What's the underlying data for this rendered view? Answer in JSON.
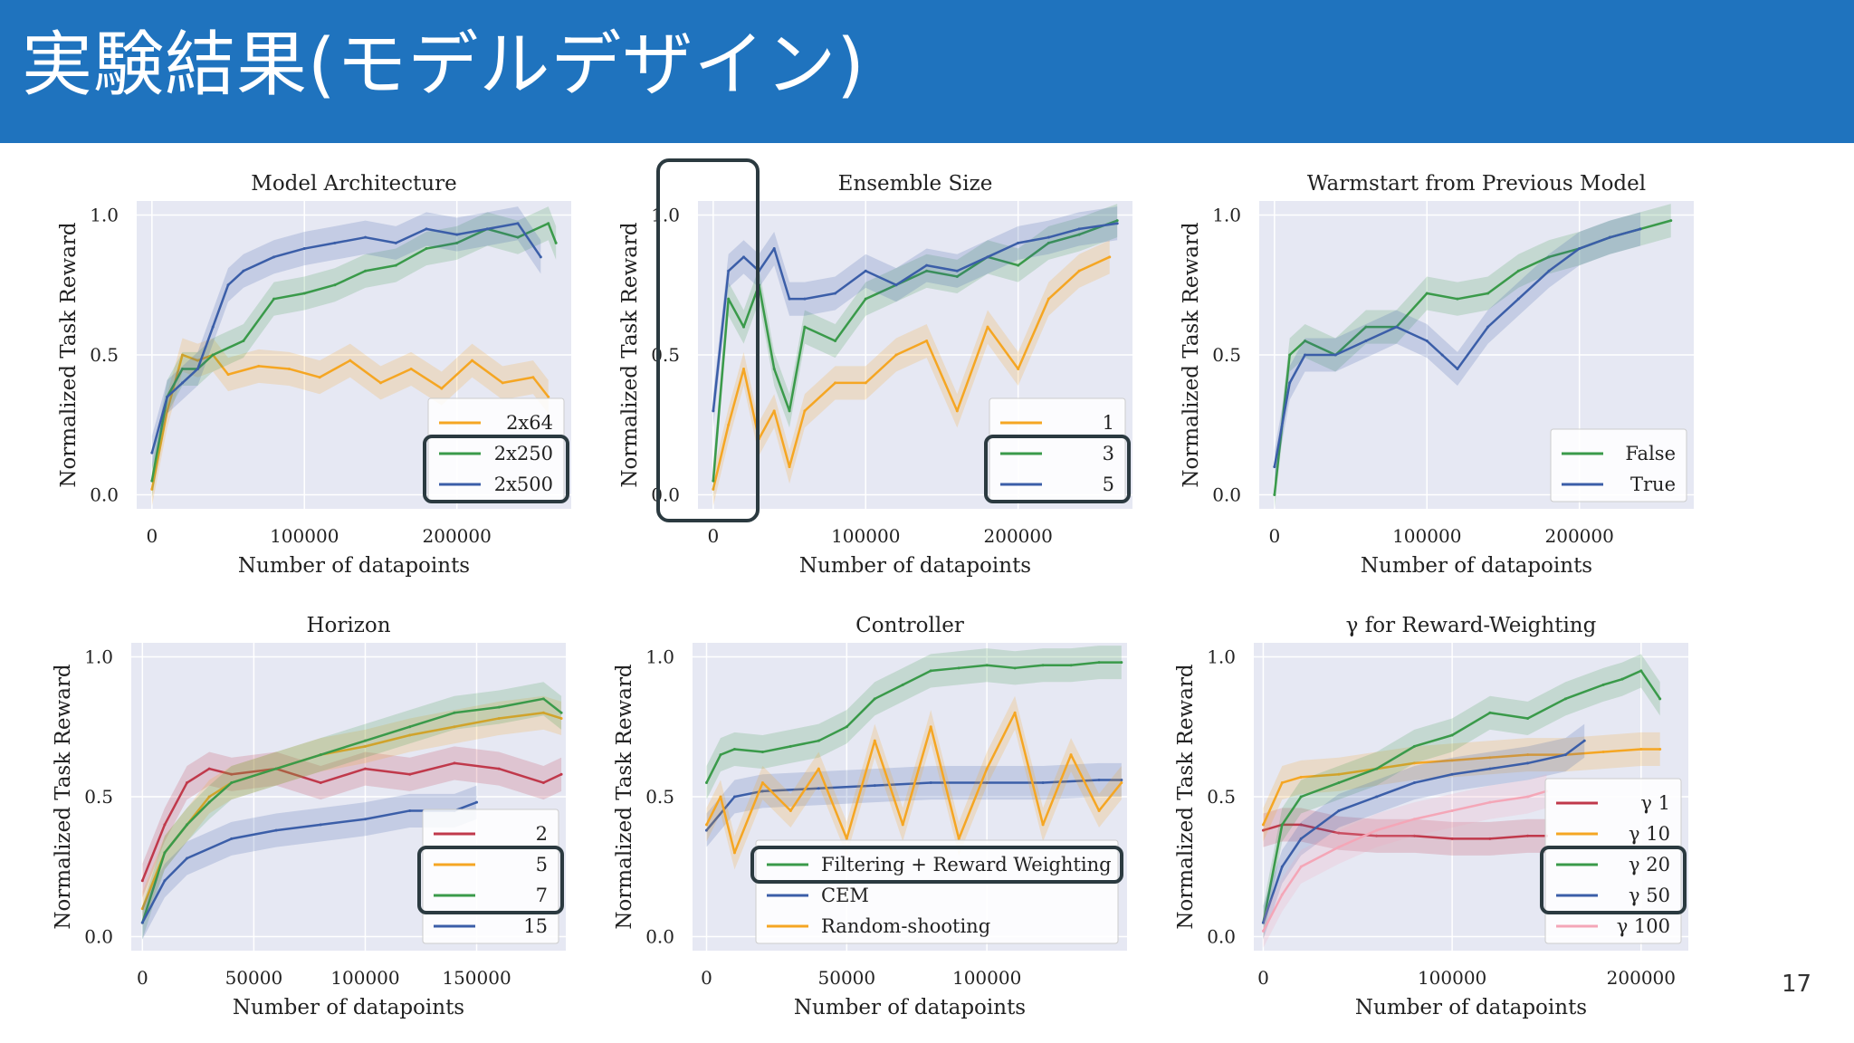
{
  "slide": {
    "title": "実験結果(モデルデザイン)",
    "page_number": "17"
  },
  "colors": {
    "banner": "#1f73be",
    "plot_bg": "#e6e8f3",
    "highlight_box": "#2b3a40"
  },
  "chart_data": [
    {
      "type": "line",
      "title": "Model Architecture",
      "xlabel": "Number of datapoints",
      "ylabel": "Normalized Task Reward",
      "xlim": [
        -10000,
        275000
      ],
      "ylim": [
        -0.05,
        1.05
      ],
      "xticks": [
        {
          "v": 0,
          "label": "0"
        },
        {
          "v": 100000,
          "label": "100000"
        },
        {
          "v": 200000,
          "label": "200000"
        }
      ],
      "yticks": [
        {
          "v": 0,
          "label": "0.0"
        },
        {
          "v": 0.5,
          "label": "0.5"
        },
        {
          "v": 1,
          "label": "1.0"
        }
      ],
      "legend": "lower-right",
      "grid": true,
      "highlight_legend_entries": [
        "2x250",
        "2x500"
      ],
      "series": [
        {
          "name": "2x64",
          "color": "#f5a623",
          "x": [
            0,
            10000,
            20000,
            30000,
            40000,
            50000,
            70000,
            90000,
            110000,
            130000,
            150000,
            170000,
            190000,
            210000,
            230000,
            250000,
            260000
          ],
          "y": [
            0.02,
            0.3,
            0.5,
            0.48,
            0.5,
            0.43,
            0.46,
            0.45,
            0.42,
            0.48,
            0.4,
            0.45,
            0.38,
            0.48,
            0.4,
            0.42,
            0.35
          ]
        },
        {
          "name": "2x250",
          "color": "#3a9a4a",
          "x": [
            0,
            10000,
            20000,
            30000,
            40000,
            60000,
            80000,
            100000,
            120000,
            140000,
            160000,
            180000,
            200000,
            220000,
            240000,
            260000,
            265000
          ],
          "y": [
            0.05,
            0.35,
            0.45,
            0.45,
            0.5,
            0.55,
            0.7,
            0.72,
            0.75,
            0.8,
            0.82,
            0.88,
            0.9,
            0.95,
            0.92,
            0.97,
            0.9
          ]
        },
        {
          "name": "2x500",
          "color": "#3b5ea8",
          "x": [
            0,
            10000,
            20000,
            30000,
            40000,
            50000,
            60000,
            80000,
            100000,
            120000,
            140000,
            160000,
            180000,
            200000,
            220000,
            240000,
            255000
          ],
          "y": [
            0.15,
            0.35,
            0.4,
            0.45,
            0.6,
            0.75,
            0.8,
            0.85,
            0.88,
            0.9,
            0.92,
            0.9,
            0.95,
            0.93,
            0.95,
            0.97,
            0.85
          ]
        }
      ]
    },
    {
      "type": "line",
      "title": "Ensemble Size",
      "xlabel": "Number of datapoints",
      "ylabel": "Normalized Task Reward",
      "xlim": [
        -10000,
        275000
      ],
      "ylim": [
        -0.05,
        1.05
      ],
      "xticks": [
        {
          "v": 0,
          "label": "0"
        },
        {
          "v": 100000,
          "label": "100000"
        },
        {
          "v": 200000,
          "label": "200000"
        }
      ],
      "yticks": [
        {
          "v": 0,
          "label": "0.0"
        },
        {
          "v": 0.5,
          "label": "0.5"
        },
        {
          "v": 1,
          "label": "1.0"
        }
      ],
      "legend": "lower-right",
      "grid": true,
      "highlight_legend_entries": [
        "3",
        "5"
      ],
      "series": [
        {
          "name": "1",
          "color": "#f5a623",
          "x": [
            0,
            10000,
            20000,
            30000,
            40000,
            50000,
            60000,
            80000,
            100000,
            120000,
            140000,
            160000,
            180000,
            200000,
            220000,
            240000,
            260000
          ],
          "y": [
            0.02,
            0.25,
            0.45,
            0.2,
            0.3,
            0.1,
            0.3,
            0.4,
            0.4,
            0.5,
            0.55,
            0.3,
            0.6,
            0.45,
            0.7,
            0.8,
            0.85
          ]
        },
        {
          "name": "3",
          "color": "#3a9a4a",
          "x": [
            0,
            10000,
            20000,
            30000,
            40000,
            50000,
            60000,
            80000,
            100000,
            120000,
            140000,
            160000,
            180000,
            200000,
            220000,
            240000,
            265000
          ],
          "y": [
            0.05,
            0.7,
            0.6,
            0.75,
            0.45,
            0.3,
            0.6,
            0.55,
            0.7,
            0.75,
            0.8,
            0.78,
            0.85,
            0.82,
            0.9,
            0.93,
            0.98
          ]
        },
        {
          "name": "5",
          "color": "#3b5ea8",
          "x": [
            0,
            10000,
            20000,
            30000,
            40000,
            50000,
            60000,
            80000,
            100000,
            120000,
            140000,
            160000,
            180000,
            200000,
            220000,
            240000,
            265000
          ],
          "y": [
            0.3,
            0.8,
            0.85,
            0.8,
            0.88,
            0.7,
            0.7,
            0.72,
            0.8,
            0.75,
            0.82,
            0.8,
            0.85,
            0.9,
            0.92,
            0.95,
            0.97
          ]
        }
      ]
    },
    {
      "type": "line",
      "title": "Warmstart from Previous Model",
      "xlabel": "Number of datapoints",
      "ylabel": "Normalized Task Reward",
      "xlim": [
        -10000,
        275000
      ],
      "ylim": [
        -0.05,
        1.05
      ],
      "xticks": [
        {
          "v": 0,
          "label": "0"
        },
        {
          "v": 100000,
          "label": "100000"
        },
        {
          "v": 200000,
          "label": "200000"
        }
      ],
      "yticks": [
        {
          "v": 0,
          "label": "0.0"
        },
        {
          "v": 0.5,
          "label": "0.5"
        },
        {
          "v": 1,
          "label": "1.0"
        }
      ],
      "legend": "lower-right",
      "grid": true,
      "highlight_legend_entries": [],
      "series": [
        {
          "name": "False",
          "color": "#3a9a4a",
          "x": [
            0,
            10000,
            20000,
            40000,
            60000,
            80000,
            100000,
            120000,
            140000,
            160000,
            180000,
            200000,
            220000,
            240000,
            260000
          ],
          "y": [
            0.0,
            0.5,
            0.55,
            0.5,
            0.6,
            0.6,
            0.72,
            0.7,
            0.72,
            0.8,
            0.85,
            0.88,
            0.92,
            0.95,
            0.98
          ]
        },
        {
          "name": "True",
          "color": "#3b5ea8",
          "x": [
            0,
            10000,
            20000,
            40000,
            60000,
            80000,
            100000,
            110000,
            120000,
            140000,
            160000,
            180000,
            200000,
            220000,
            240000
          ],
          "y": [
            0.1,
            0.4,
            0.5,
            0.5,
            0.55,
            0.6,
            0.55,
            0.5,
            0.45,
            0.6,
            0.7,
            0.8,
            0.88,
            0.92,
            0.95
          ]
        }
      ]
    },
    {
      "type": "line",
      "title": "Horizon",
      "xlabel": "Number of datapoints",
      "ylabel": "Normalized Task Reward",
      "xlim": [
        -5000,
        190000
      ],
      "ylim": [
        -0.05,
        1.05
      ],
      "xticks": [
        {
          "v": 0,
          "label": "0"
        },
        {
          "v": 50000,
          "label": "50000"
        },
        {
          "v": 100000,
          "label": "100000"
        },
        {
          "v": 150000,
          "label": "150000"
        }
      ],
      "yticks": [
        {
          "v": 0,
          "label": "0.0"
        },
        {
          "v": 0.5,
          "label": "0.5"
        },
        {
          "v": 1,
          "label": "1.0"
        }
      ],
      "legend": "lower-right",
      "grid": true,
      "highlight_legend_entries": [
        "5",
        "7"
      ],
      "series": [
        {
          "name": "2",
          "color": "#c0394b",
          "x": [
            0,
            10000,
            20000,
            30000,
            40000,
            60000,
            80000,
            100000,
            120000,
            140000,
            160000,
            180000,
            188000
          ],
          "y": [
            0.2,
            0.4,
            0.55,
            0.6,
            0.58,
            0.6,
            0.55,
            0.6,
            0.58,
            0.62,
            0.6,
            0.55,
            0.58
          ]
        },
        {
          "name": "5",
          "color": "#f5a623",
          "x": [
            0,
            10000,
            20000,
            30000,
            40000,
            60000,
            80000,
            100000,
            120000,
            140000,
            160000,
            180000,
            188000
          ],
          "y": [
            0.1,
            0.3,
            0.4,
            0.5,
            0.55,
            0.6,
            0.65,
            0.68,
            0.72,
            0.75,
            0.78,
            0.8,
            0.78
          ]
        },
        {
          "name": "7",
          "color": "#3a9a4a",
          "x": [
            0,
            10000,
            20000,
            30000,
            40000,
            60000,
            80000,
            100000,
            120000,
            140000,
            160000,
            180000,
            188000
          ],
          "y": [
            0.05,
            0.3,
            0.4,
            0.48,
            0.55,
            0.6,
            0.65,
            0.7,
            0.75,
            0.8,
            0.82,
            0.85,
            0.8
          ]
        },
        {
          "name": "15",
          "color": "#3b5ea8",
          "x": [
            0,
            10000,
            20000,
            40000,
            60000,
            80000,
            100000,
            120000,
            140000,
            150000
          ],
          "y": [
            0.05,
            0.2,
            0.28,
            0.35,
            0.38,
            0.4,
            0.42,
            0.45,
            0.45,
            0.48
          ]
        }
      ]
    },
    {
      "type": "line",
      "title": "Controller",
      "xlabel": "Number of datapoints",
      "ylabel": "Normalized Task Reward",
      "xlim": [
        -5000,
        150000
      ],
      "ylim": [
        -0.05,
        1.05
      ],
      "xticks": [
        {
          "v": 0,
          "label": "0"
        },
        {
          "v": 50000,
          "label": "50000"
        },
        {
          "v": 100000,
          "label": "100000"
        }
      ],
      "yticks": [
        {
          "v": 0,
          "label": "0.0"
        },
        {
          "v": 0.5,
          "label": "0.5"
        },
        {
          "v": 1,
          "label": "1.0"
        }
      ],
      "legend": "lower-center",
      "grid": true,
      "highlight_legend_entries": [
        "Filtering + Reward Weighting"
      ],
      "series": [
        {
          "name": "Filtering + Reward Weighting",
          "color": "#3a9a4a",
          "x": [
            0,
            5000,
            10000,
            20000,
            30000,
            40000,
            50000,
            60000,
            70000,
            80000,
            90000,
            100000,
            110000,
            120000,
            130000,
            140000,
            148000
          ],
          "y": [
            0.55,
            0.65,
            0.67,
            0.66,
            0.68,
            0.7,
            0.75,
            0.85,
            0.9,
            0.95,
            0.96,
            0.97,
            0.96,
            0.97,
            0.97,
            0.98,
            0.98
          ]
        },
        {
          "name": "CEM",
          "color": "#3b5ea8",
          "x": [
            0,
            10000,
            20000,
            40000,
            60000,
            80000,
            100000,
            120000,
            140000,
            148000
          ],
          "y": [
            0.38,
            0.5,
            0.52,
            0.53,
            0.54,
            0.55,
            0.55,
            0.55,
            0.56,
            0.56
          ]
        },
        {
          "name": "Random-shooting",
          "color": "#f5a623",
          "x": [
            0,
            5000,
            10000,
            20000,
            30000,
            40000,
            50000,
            60000,
            70000,
            80000,
            90000,
            100000,
            110000,
            120000,
            130000,
            140000,
            148000
          ],
          "y": [
            0.4,
            0.5,
            0.3,
            0.55,
            0.45,
            0.6,
            0.35,
            0.7,
            0.4,
            0.75,
            0.35,
            0.6,
            0.8,
            0.4,
            0.65,
            0.45,
            0.55
          ]
        }
      ]
    },
    {
      "type": "line",
      "title": "γ for Reward-Weighting",
      "xlabel": "Number of datapoints",
      "ylabel": "Normalized Task Reward",
      "xlim": [
        -5000,
        225000
      ],
      "ylim": [
        -0.05,
        1.05
      ],
      "xticks": [
        {
          "v": 0,
          "label": "0"
        },
        {
          "v": 100000,
          "label": "100000"
        },
        {
          "v": 200000,
          "label": "200000"
        }
      ],
      "yticks": [
        {
          "v": 0,
          "label": "0.0"
        },
        {
          "v": 0.5,
          "label": "0.5"
        },
        {
          "v": 1,
          "label": "1.0"
        }
      ],
      "legend": "lower-right",
      "grid": true,
      "highlight_legend_entries": [
        "γ 20",
        "γ 50"
      ],
      "series": [
        {
          "name": "γ 1",
          "color": "#c0394b",
          "x": [
            0,
            10000,
            20000,
            40000,
            60000,
            80000,
            100000,
            120000,
            140000,
            150000
          ],
          "y": [
            0.38,
            0.4,
            0.4,
            0.37,
            0.36,
            0.36,
            0.35,
            0.35,
            0.36,
            0.36
          ]
        },
        {
          "name": "γ 10",
          "color": "#f5a623",
          "x": [
            0,
            10000,
            20000,
            40000,
            60000,
            80000,
            100000,
            120000,
            140000,
            160000,
            180000,
            200000,
            210000
          ],
          "y": [
            0.4,
            0.55,
            0.57,
            0.58,
            0.6,
            0.62,
            0.63,
            0.64,
            0.65,
            0.65,
            0.66,
            0.67,
            0.67
          ]
        },
        {
          "name": "γ 20",
          "color": "#3a9a4a",
          "x": [
            0,
            10000,
            20000,
            40000,
            60000,
            80000,
            100000,
            120000,
            140000,
            160000,
            180000,
            190000,
            200000,
            210000
          ],
          "y": [
            0.05,
            0.4,
            0.5,
            0.55,
            0.6,
            0.68,
            0.72,
            0.8,
            0.78,
            0.85,
            0.9,
            0.92,
            0.95,
            0.85
          ]
        },
        {
          "name": "γ 50",
          "color": "#3b5ea8",
          "x": [
            0,
            10000,
            20000,
            40000,
            60000,
            80000,
            100000,
            120000,
            140000,
            160000,
            170000
          ],
          "y": [
            0.05,
            0.25,
            0.35,
            0.45,
            0.5,
            0.55,
            0.58,
            0.6,
            0.62,
            0.65,
            0.7
          ]
        },
        {
          "name": "γ 100",
          "color": "#f4a6b7",
          "x": [
            0,
            10000,
            20000,
            40000,
            60000,
            80000,
            100000,
            120000,
            140000,
            150000
          ],
          "y": [
            0.02,
            0.15,
            0.25,
            0.32,
            0.38,
            0.42,
            0.45,
            0.48,
            0.5,
            0.52
          ]
        }
      ]
    }
  ]
}
